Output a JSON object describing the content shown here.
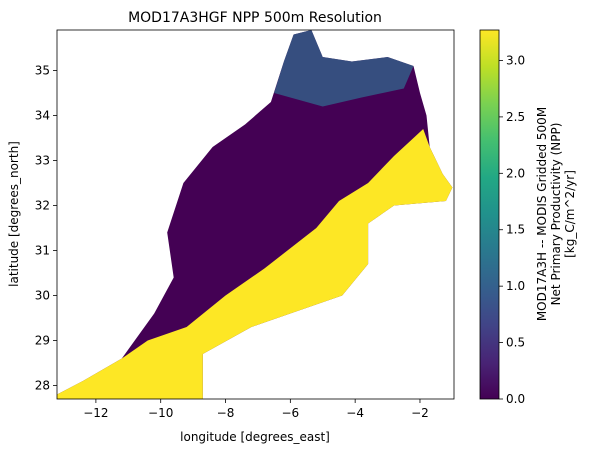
{
  "chart_data": {
    "type": "heatmap",
    "title": "MOD17A3HGF NPP 500m Resolution",
    "xlabel": "longitude [degrees_east]",
    "ylabel": "latitude [degrees_north]",
    "xlim": [
      -13.2,
      -0.95
    ],
    "ylim": [
      27.7,
      35.9
    ],
    "x_ticks": [
      -12,
      -10,
      -8,
      -6,
      -4,
      -2
    ],
    "x_tick_labels": [
      "−12",
      "−10",
      "−8",
      "−6",
      "−4",
      "−2"
    ],
    "y_ticks": [
      28,
      29,
      30,
      31,
      32,
      33,
      34,
      35
    ],
    "y_tick_labels": [
      "28",
      "29",
      "30",
      "31",
      "32",
      "33",
      "34",
      "35"
    ],
    "colorbar": {
      "colormap": "viridis",
      "vmin": 0.0,
      "vmax": 3.27,
      "ticks": [
        0.0,
        0.5,
        1.0,
        1.5,
        2.0,
        2.5,
        3.0
      ],
      "tick_labels": [
        "0.0",
        "0.5",
        "1.0",
        "1.5",
        "2.0",
        "2.5",
        "3.0"
      ],
      "label_lines": [
        "MOD17A3H -- MODIS Gridded 500M",
        "Net Primary Productivity (NPP)",
        "[kg_C/m^2/yr]"
      ]
    },
    "region_boundary_lonlat": [
      [
        -5.35,
        35.9
      ],
      [
        -5.9,
        35.8
      ],
      [
        -6.2,
        35.2
      ],
      [
        -6.6,
        34.3
      ],
      [
        -7.4,
        33.8
      ],
      [
        -8.4,
        33.3
      ],
      [
        -9.3,
        32.5
      ],
      [
        -9.8,
        31.4
      ],
      [
        -9.6,
        30.4
      ],
      [
        -10.2,
        29.6
      ],
      [
        -11.2,
        28.6
      ],
      [
        -12.4,
        28.1
      ],
      [
        -13.2,
        27.8
      ],
      [
        -13.2,
        27.7
      ],
      [
        -8.7,
        27.7
      ],
      [
        -8.7,
        28.7
      ],
      [
        -7.2,
        29.3
      ],
      [
        -6.0,
        29.6
      ],
      [
        -4.4,
        30.0
      ],
      [
        -3.6,
        30.7
      ],
      [
        -3.6,
        31.6
      ],
      [
        -2.8,
        32.0
      ],
      [
        -1.2,
        32.1
      ],
      [
        -1.0,
        32.4
      ],
      [
        -1.3,
        32.7
      ],
      [
        -1.7,
        33.3
      ],
      [
        -1.8,
        34.0
      ],
      [
        -2.0,
        34.5
      ],
      [
        -2.2,
        35.1
      ],
      [
        -3.0,
        35.3
      ],
      [
        -4.1,
        35.2
      ],
      [
        -5.0,
        35.3
      ]
    ],
    "high_npp_zone_lonlat": [
      [
        -13.2,
        27.7
      ],
      [
        -13.2,
        27.8
      ],
      [
        -12.4,
        28.1
      ],
      [
        -11.2,
        28.6
      ],
      [
        -10.4,
        29.0
      ],
      [
        -9.2,
        29.3
      ],
      [
        -8.0,
        30.0
      ],
      [
        -6.8,
        30.6
      ],
      [
        -5.2,
        31.5
      ],
      [
        -4.5,
        32.1
      ],
      [
        -3.6,
        32.5
      ],
      [
        -2.8,
        33.1
      ],
      [
        -2.2,
        33.5
      ],
      [
        -1.9,
        33.7
      ],
      [
        -1.7,
        33.3
      ],
      [
        -1.3,
        32.7
      ],
      [
        -1.0,
        32.4
      ],
      [
        -1.2,
        32.1
      ],
      [
        -2.8,
        32.0
      ],
      [
        -3.6,
        31.6
      ],
      [
        -3.6,
        30.7
      ],
      [
        -4.4,
        30.0
      ],
      [
        -6.0,
        29.6
      ],
      [
        -7.2,
        29.3
      ],
      [
        -8.7,
        28.7
      ],
      [
        -8.7,
        27.7
      ]
    ],
    "mid_npp_zone_lonlat": [
      [
        -5.35,
        35.9
      ],
      [
        -5.9,
        35.8
      ],
      [
        -6.2,
        35.2
      ],
      [
        -6.5,
        34.5
      ],
      [
        -5.0,
        34.2
      ],
      [
        -3.8,
        34.4
      ],
      [
        -2.5,
        34.6
      ],
      [
        -2.2,
        35.1
      ],
      [
        -3.0,
        35.3
      ],
      [
        -4.1,
        35.2
      ],
      [
        -5.0,
        35.3
      ]
    ],
    "colors": {
      "low_npp": "#440154",
      "low_npp_alt": "#3e2470",
      "mid_npp": "#31688e",
      "high_npp": "#fde725"
    }
  }
}
